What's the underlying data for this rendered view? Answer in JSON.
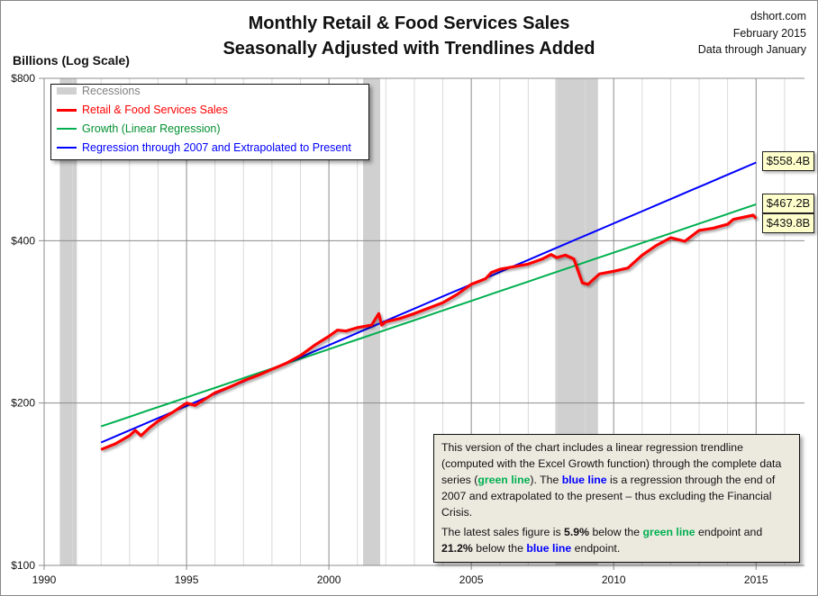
{
  "header": {
    "title_line1": "Monthly Retail & Food Services Sales",
    "title_line2": "Seasonally Adjusted with Trendlines Added",
    "source": "dshort.com",
    "date": "February 2015",
    "data_note": "Data through January"
  },
  "legend": {
    "recessions": "Recessions",
    "sales": "Retail & Food Services Sales",
    "growth": "Growth (Linear Regression)",
    "regression": "Regression through 2007 and Extrapolated to Present"
  },
  "note": {
    "p1_a": "This version of the chart includes a linear regression trendline (computed with the Excel Growth function) through the complete data series (",
    "p1_green": "green line",
    "p1_b": "). The ",
    "p1_blue": "blue line",
    "p1_c": " is a regression through the end of 2007 and extrapolated to the present – thus excluding the Financial Crisis.",
    "p2_a": "The latest sales figure is ",
    "p2_pct1": "5.9%",
    "p2_b": " below the ",
    "p2_green": "green line",
    "p2_c": " endpoint and ",
    "p2_pct2": "21.2%",
    "p2_d": " below the ",
    "p2_blue": "blue line",
    "p2_e": " endpoint."
  },
  "end_labels": {
    "regression": "$558.4B",
    "growth": "$467.2B",
    "sales": "$439.8B"
  },
  "colors": {
    "sales": "#ff0000",
    "growth": "#00b050",
    "regression": "#0000ff",
    "recession": "#d0d0d0",
    "label_bg": "#ffffcc",
    "note_bg": "#ece9df"
  },
  "chart_data": {
    "type": "line",
    "title": "Monthly Retail & Food Services Sales",
    "subtitle": "Seasonally Adjusted with Trendlines Added",
    "ylabel": "Billions (Log Scale)",
    "y_scale": "log",
    "ylim": [
      100,
      800
    ],
    "xlim": [
      1990,
      2016.7
    ],
    "y_ticks": [
      100,
      200,
      400,
      800
    ],
    "y_tick_labels": [
      "$100",
      "$200",
      "$400",
      "$800"
    ],
    "x_ticks": [
      1990,
      1995,
      2000,
      2005,
      2010,
      2015
    ],
    "x_tick_labels": [
      "1990",
      "1995",
      "2000",
      "2005",
      "2010",
      "2015"
    ],
    "grid": true,
    "legend_position": "top-left",
    "recessions": [
      [
        1990.55,
        1991.15
      ],
      [
        2001.2,
        2001.8
      ],
      [
        2007.95,
        2009.45
      ]
    ],
    "series": [
      {
        "name": "Retail & Food Services Sales",
        "color": "#ff0000",
        "points": [
          [
            1992.0,
            164
          ],
          [
            1992.5,
            168
          ],
          [
            1993.0,
            174
          ],
          [
            1993.2,
            178
          ],
          [
            1993.4,
            174
          ],
          [
            1993.7,
            180
          ],
          [
            1994.0,
            185
          ],
          [
            1994.5,
            192
          ],
          [
            1995.0,
            200
          ],
          [
            1995.3,
            198
          ],
          [
            1996.0,
            209
          ],
          [
            1996.5,
            214
          ],
          [
            1997.0,
            220
          ],
          [
            1997.5,
            225
          ],
          [
            1998.0,
            231
          ],
          [
            1998.5,
            237
          ],
          [
            1999.0,
            245
          ],
          [
            1999.5,
            256
          ],
          [
            2000.0,
            266
          ],
          [
            2000.3,
            273
          ],
          [
            2000.6,
            272
          ],
          [
            2001.0,
            276
          ],
          [
            2001.5,
            279
          ],
          [
            2001.75,
            293
          ],
          [
            2001.85,
            279
          ],
          [
            2002.0,
            283
          ],
          [
            2002.5,
            287
          ],
          [
            2003.0,
            293
          ],
          [
            2003.5,
            300
          ],
          [
            2004.0,
            307
          ],
          [
            2004.5,
            318
          ],
          [
            2005.0,
            332
          ],
          [
            2005.5,
            340
          ],
          [
            2005.7,
            349
          ],
          [
            2006.0,
            354
          ],
          [
            2006.5,
            358
          ],
          [
            2007.0,
            362
          ],
          [
            2007.5,
            370
          ],
          [
            2007.8,
            377
          ],
          [
            2008.0,
            372
          ],
          [
            2008.3,
            376
          ],
          [
            2008.6,
            370
          ],
          [
            2008.9,
            334
          ],
          [
            2009.1,
            332
          ],
          [
            2009.5,
            347
          ],
          [
            2010.0,
            351
          ],
          [
            2010.5,
            356
          ],
          [
            2011.0,
            376
          ],
          [
            2011.5,
            392
          ],
          [
            2012.0,
            405
          ],
          [
            2012.5,
            399
          ],
          [
            2013.0,
            418
          ],
          [
            2013.5,
            422
          ],
          [
            2014.0,
            429
          ],
          [
            2014.2,
            438
          ],
          [
            2014.9,
            446
          ],
          [
            2015.0,
            439.8
          ]
        ]
      },
      {
        "name": "Growth (Linear Regression)",
        "color": "#00b050",
        "points": [
          [
            1992.0,
            181
          ],
          [
            2015.0,
            467.2
          ]
        ]
      },
      {
        "name": "Regression through 2007 and Extrapolated to Present",
        "color": "#0000ff",
        "points": [
          [
            1992.0,
            169
          ],
          [
            2015.0,
            558.4
          ]
        ]
      }
    ]
  }
}
